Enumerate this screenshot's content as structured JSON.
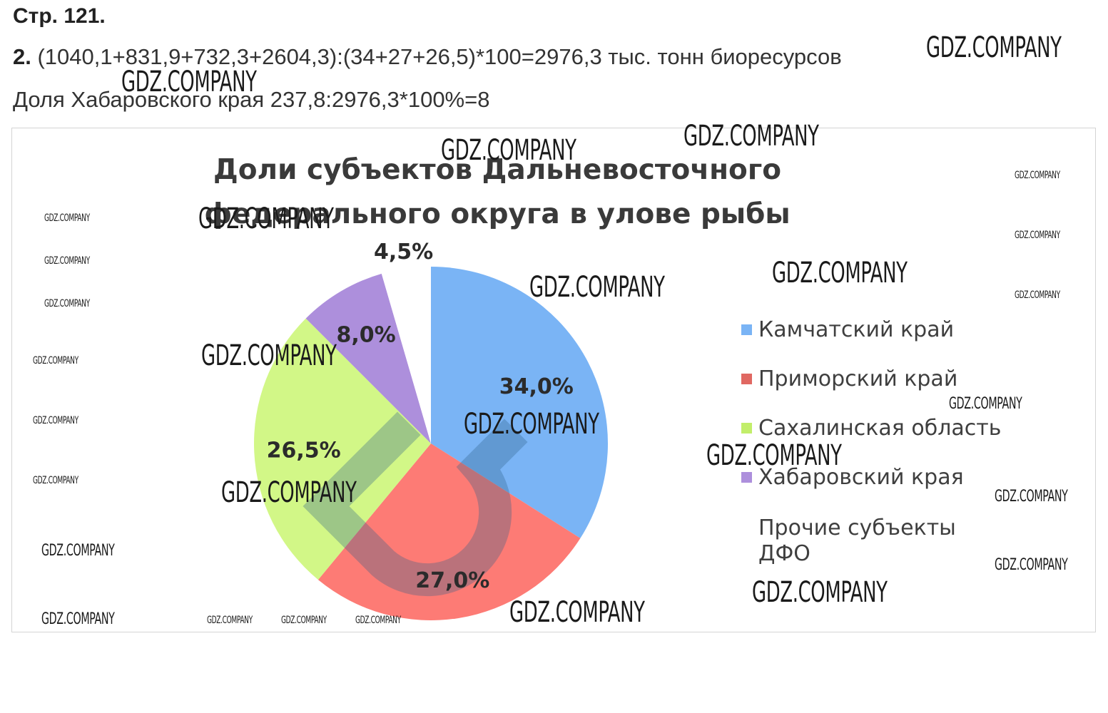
{
  "page": {
    "heading": "Стр. 121.",
    "task_number": "2.",
    "task_text": "(1040,1+831,9+732,3+2604,3):(34+27+26,5)*100=2976,3 тыс. тонн биоресурсов",
    "share_text": "Доля Хабаровского края 237,8:2976,3*100%=8"
  },
  "watermark": {
    "text": "GDZ.COMPANY"
  },
  "chart_data": {
    "type": "pie",
    "title": "Доли субъектов Дальневосточного федерального округа в улове рыбы",
    "slices": [
      {
        "name": "Камчатский край",
        "value": 34.0,
        "label": "34,0%",
        "color": "#7ab4f5"
      },
      {
        "name": "Приморский край",
        "value": 27.0,
        "label": "27,0%",
        "color": "#fd7b75"
      },
      {
        "name": "Сахалинская область",
        "value": 26.5,
        "label": "26,5%",
        "color": "#d2f787"
      },
      {
        "name": "Хабаровский края",
        "value": 8.0,
        "label": "8,0%",
        "color": "#ad8fdc"
      },
      {
        "name": "Прочие субъекты ДФО",
        "value": 4.5,
        "label": "4,5%",
        "color": "#ffffff"
      }
    ],
    "legend_position": "right"
  }
}
